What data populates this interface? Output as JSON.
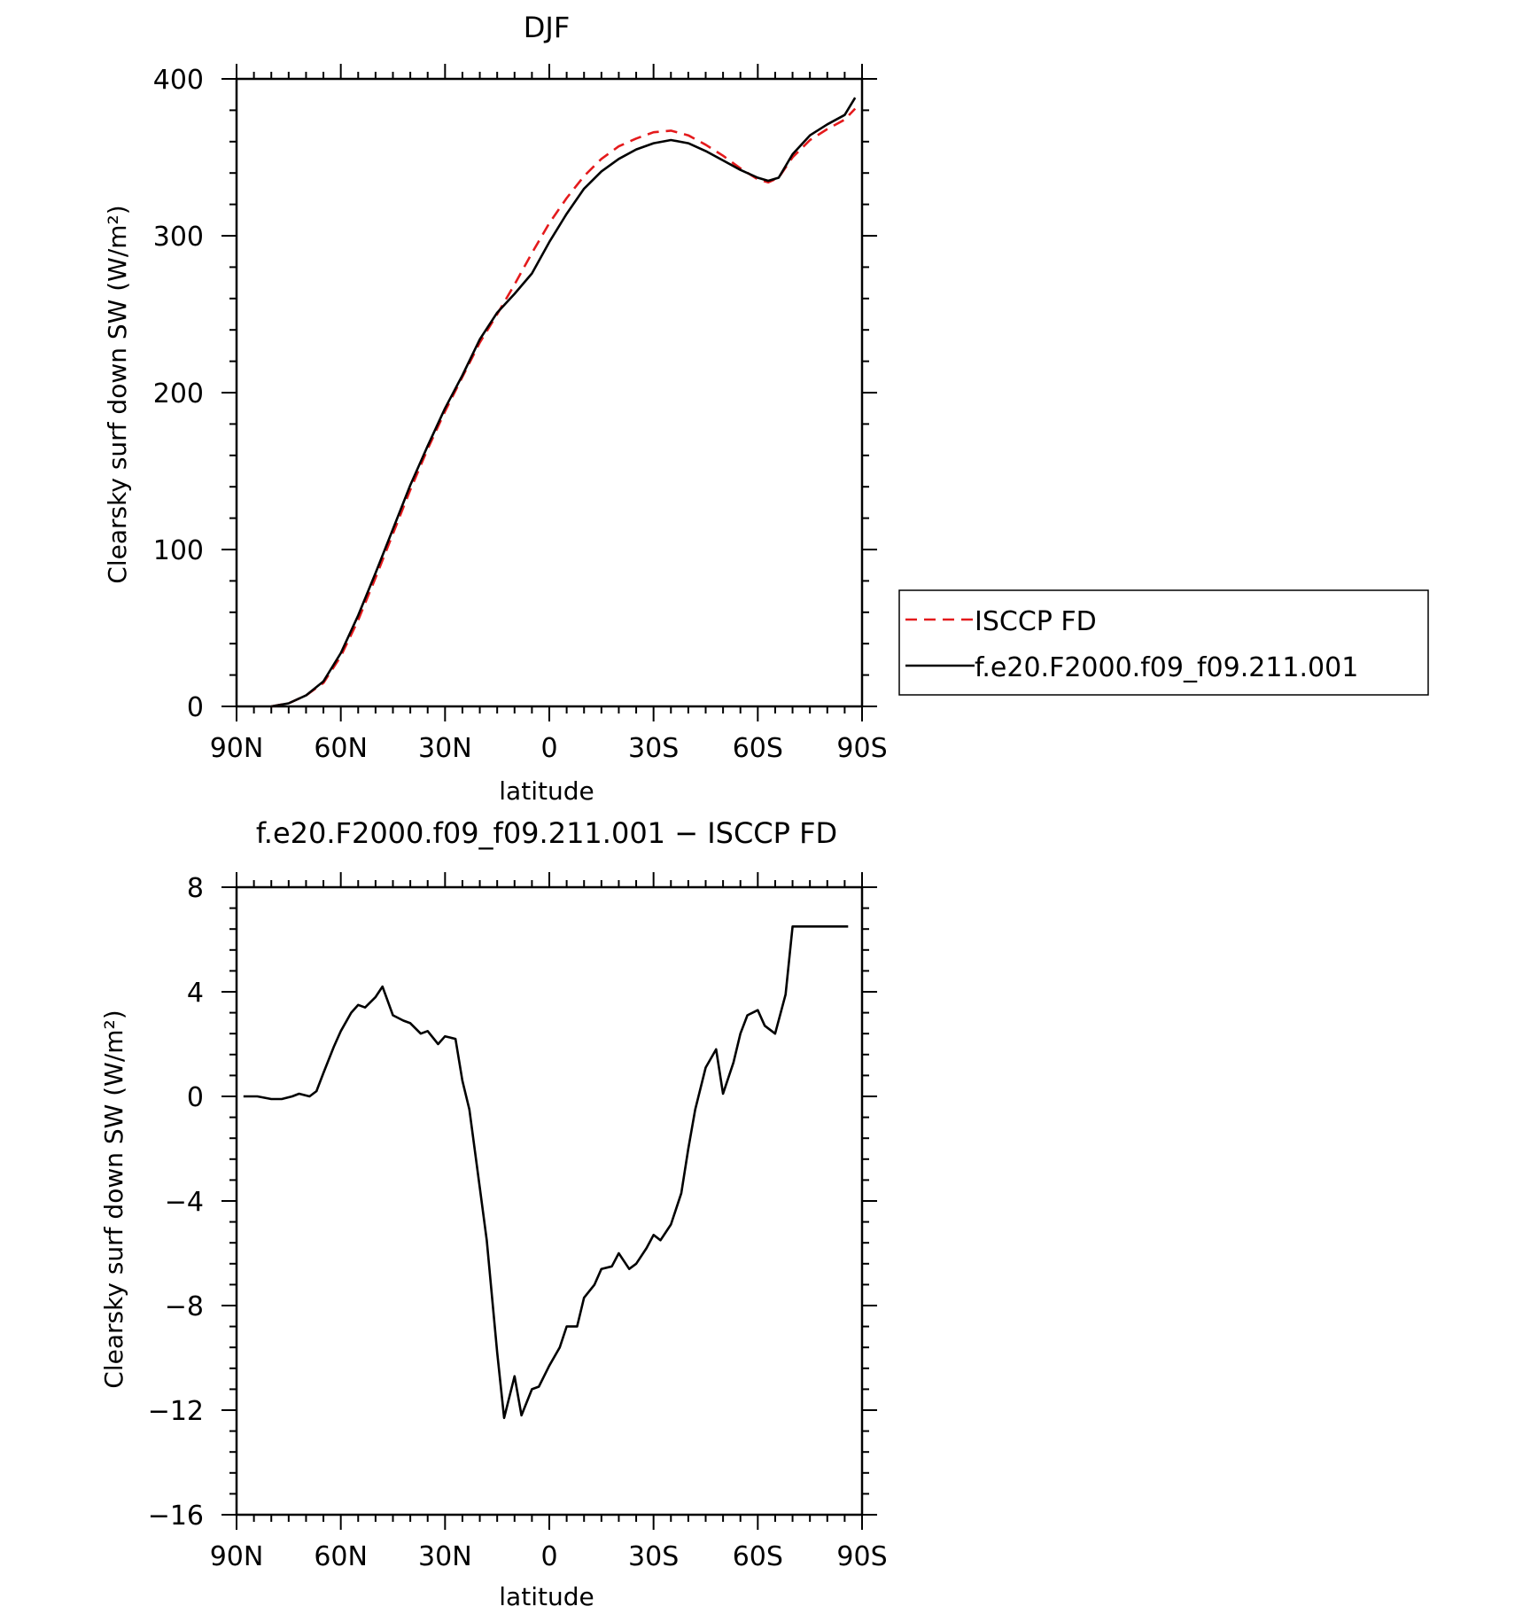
{
  "chart_data": [
    {
      "type": "line",
      "title": "DJF",
      "xlabel": "latitude",
      "ylabel": "Clearsky surf down SW (W/m²)",
      "xlim": [
        90,
        -90
      ],
      "ylim": [
        0,
        400
      ],
      "x_ticks": [
        90,
        60,
        30,
        0,
        -30,
        -60,
        -90
      ],
      "x_tick_labels": [
        "90N",
        "60N",
        "30N",
        "0",
        "30S",
        "60S",
        "90S"
      ],
      "y_ticks": [
        0,
        100,
        200,
        300,
        400
      ],
      "y_tick_labels": [
        "0",
        "100",
        "200",
        "300",
        "400"
      ],
      "legend": "right",
      "series": [
        {
          "name": "ISCCP FD",
          "color": "#e41a1c",
          "dash": "dashed",
          "x": [
            80,
            75,
            70,
            65,
            60,
            55,
            50,
            45,
            40,
            35,
            30,
            25,
            20,
            15,
            10,
            5,
            0,
            -5,
            -10,
            -15,
            -20,
            -25,
            -30,
            -35,
            -40,
            -45,
            -50,
            -55,
            -60,
            -63,
            -66,
            -70,
            -75,
            -80,
            -85,
            -88
          ],
          "y": [
            0,
            2,
            7,
            15,
            32,
            55,
            82,
            110,
            138,
            164,
            188,
            210,
            232,
            250,
            269,
            289,
            308,
            324,
            338,
            349,
            357,
            362,
            366,
            367,
            364,
            358,
            351,
            343,
            336,
            334,
            337,
            350,
            361,
            368,
            374,
            381
          ]
        },
        {
          "name": "f.e20.F2000.f09_f09.211.001",
          "color": "#000000",
          "dash": "solid",
          "x": [
            80,
            75,
            70,
            65,
            60,
            55,
            50,
            45,
            40,
            35,
            30,
            25,
            20,
            15,
            10,
            5,
            0,
            -5,
            -10,
            -15,
            -20,
            -25,
            -30,
            -35,
            -40,
            -45,
            -50,
            -55,
            -60,
            -63,
            -66,
            -70,
            -75,
            -80,
            -85,
            -88
          ],
          "y": [
            0,
            2,
            7,
            16,
            34,
            58,
            85,
            113,
            141,
            166,
            190,
            211,
            234,
            251,
            263,
            276,
            296,
            314,
            330,
            341,
            349,
            355,
            359,
            361,
            359,
            354,
            348,
            342,
            337,
            335,
            337,
            352,
            364,
            371,
            377,
            388
          ]
        }
      ]
    },
    {
      "type": "line",
      "title": "f.e20.F2000.f09_f09.211.001 − ISCCP FD",
      "xlabel": "latitude",
      "ylabel": "Clearsky surf down SW (W/m²)",
      "xlim": [
        90,
        -90
      ],
      "ylim": [
        -16,
        8
      ],
      "x_ticks": [
        90,
        60,
        30,
        0,
        -30,
        -60,
        -90
      ],
      "x_tick_labels": [
        "90N",
        "60N",
        "30N",
        "0",
        "30S",
        "60S",
        "90S"
      ],
      "y_ticks": [
        -16,
        -12,
        -8,
        -4,
        0,
        4,
        8
      ],
      "y_tick_labels": [
        "−16",
        "−12",
        "−8",
        "−4",
        "0",
        "4",
        "8"
      ],
      "series": [
        {
          "color": "#000000",
          "dash": "solid",
          "x": [
            88,
            84,
            80,
            77,
            74,
            72,
            69,
            67,
            65,
            62,
            60,
            57,
            55,
            53,
            50,
            48,
            45,
            42,
            40,
            37,
            35,
            32,
            30,
            27,
            25,
            23,
            20,
            18,
            15,
            13,
            10,
            8,
            5,
            3,
            0,
            -3,
            -5,
            -8,
            -10,
            -13,
            -15,
            -18,
            -20,
            -23,
            -25,
            -28,
            -30,
            -32,
            -35,
            -38,
            -40,
            -42,
            -45,
            -48,
            -50,
            -53,
            -55,
            -57,
            -60,
            -62,
            -65,
            -68,
            -70,
            -73,
            -75,
            -78,
            -80,
            -82,
            -84,
            -86
          ],
          "y": [
            0,
            0,
            -0.1,
            -0.1,
            0,
            0.1,
            0,
            0.2,
            0.9,
            1.9,
            2.5,
            3.2,
            3.5,
            3.4,
            3.8,
            4.2,
            3.1,
            2.9,
            2.8,
            2.4,
            2.5,
            2.0,
            2.3,
            2.2,
            0.6,
            -0.5,
            -3.5,
            -5.5,
            -9.8,
            -12.3,
            -10.7,
            -12.2,
            -11.2,
            -11.1,
            -10.3,
            -9.6,
            -8.8,
            -8.8,
            -7.7,
            -7.2,
            -6.6,
            -6.5,
            -6.0,
            -6.6,
            -6.4,
            -5.8,
            -5.3,
            -5.5,
            -4.9,
            -3.7,
            -2.0,
            -0.5,
            1.1,
            1.8,
            0.1,
            1.3,
            2.4,
            3.1,
            3.3,
            2.7,
            2.4,
            3.9,
            6.5,
            6.5,
            6.5,
            6.5,
            6.5,
            6.5,
            6.5,
            6.5
          ]
        }
      ]
    }
  ]
}
